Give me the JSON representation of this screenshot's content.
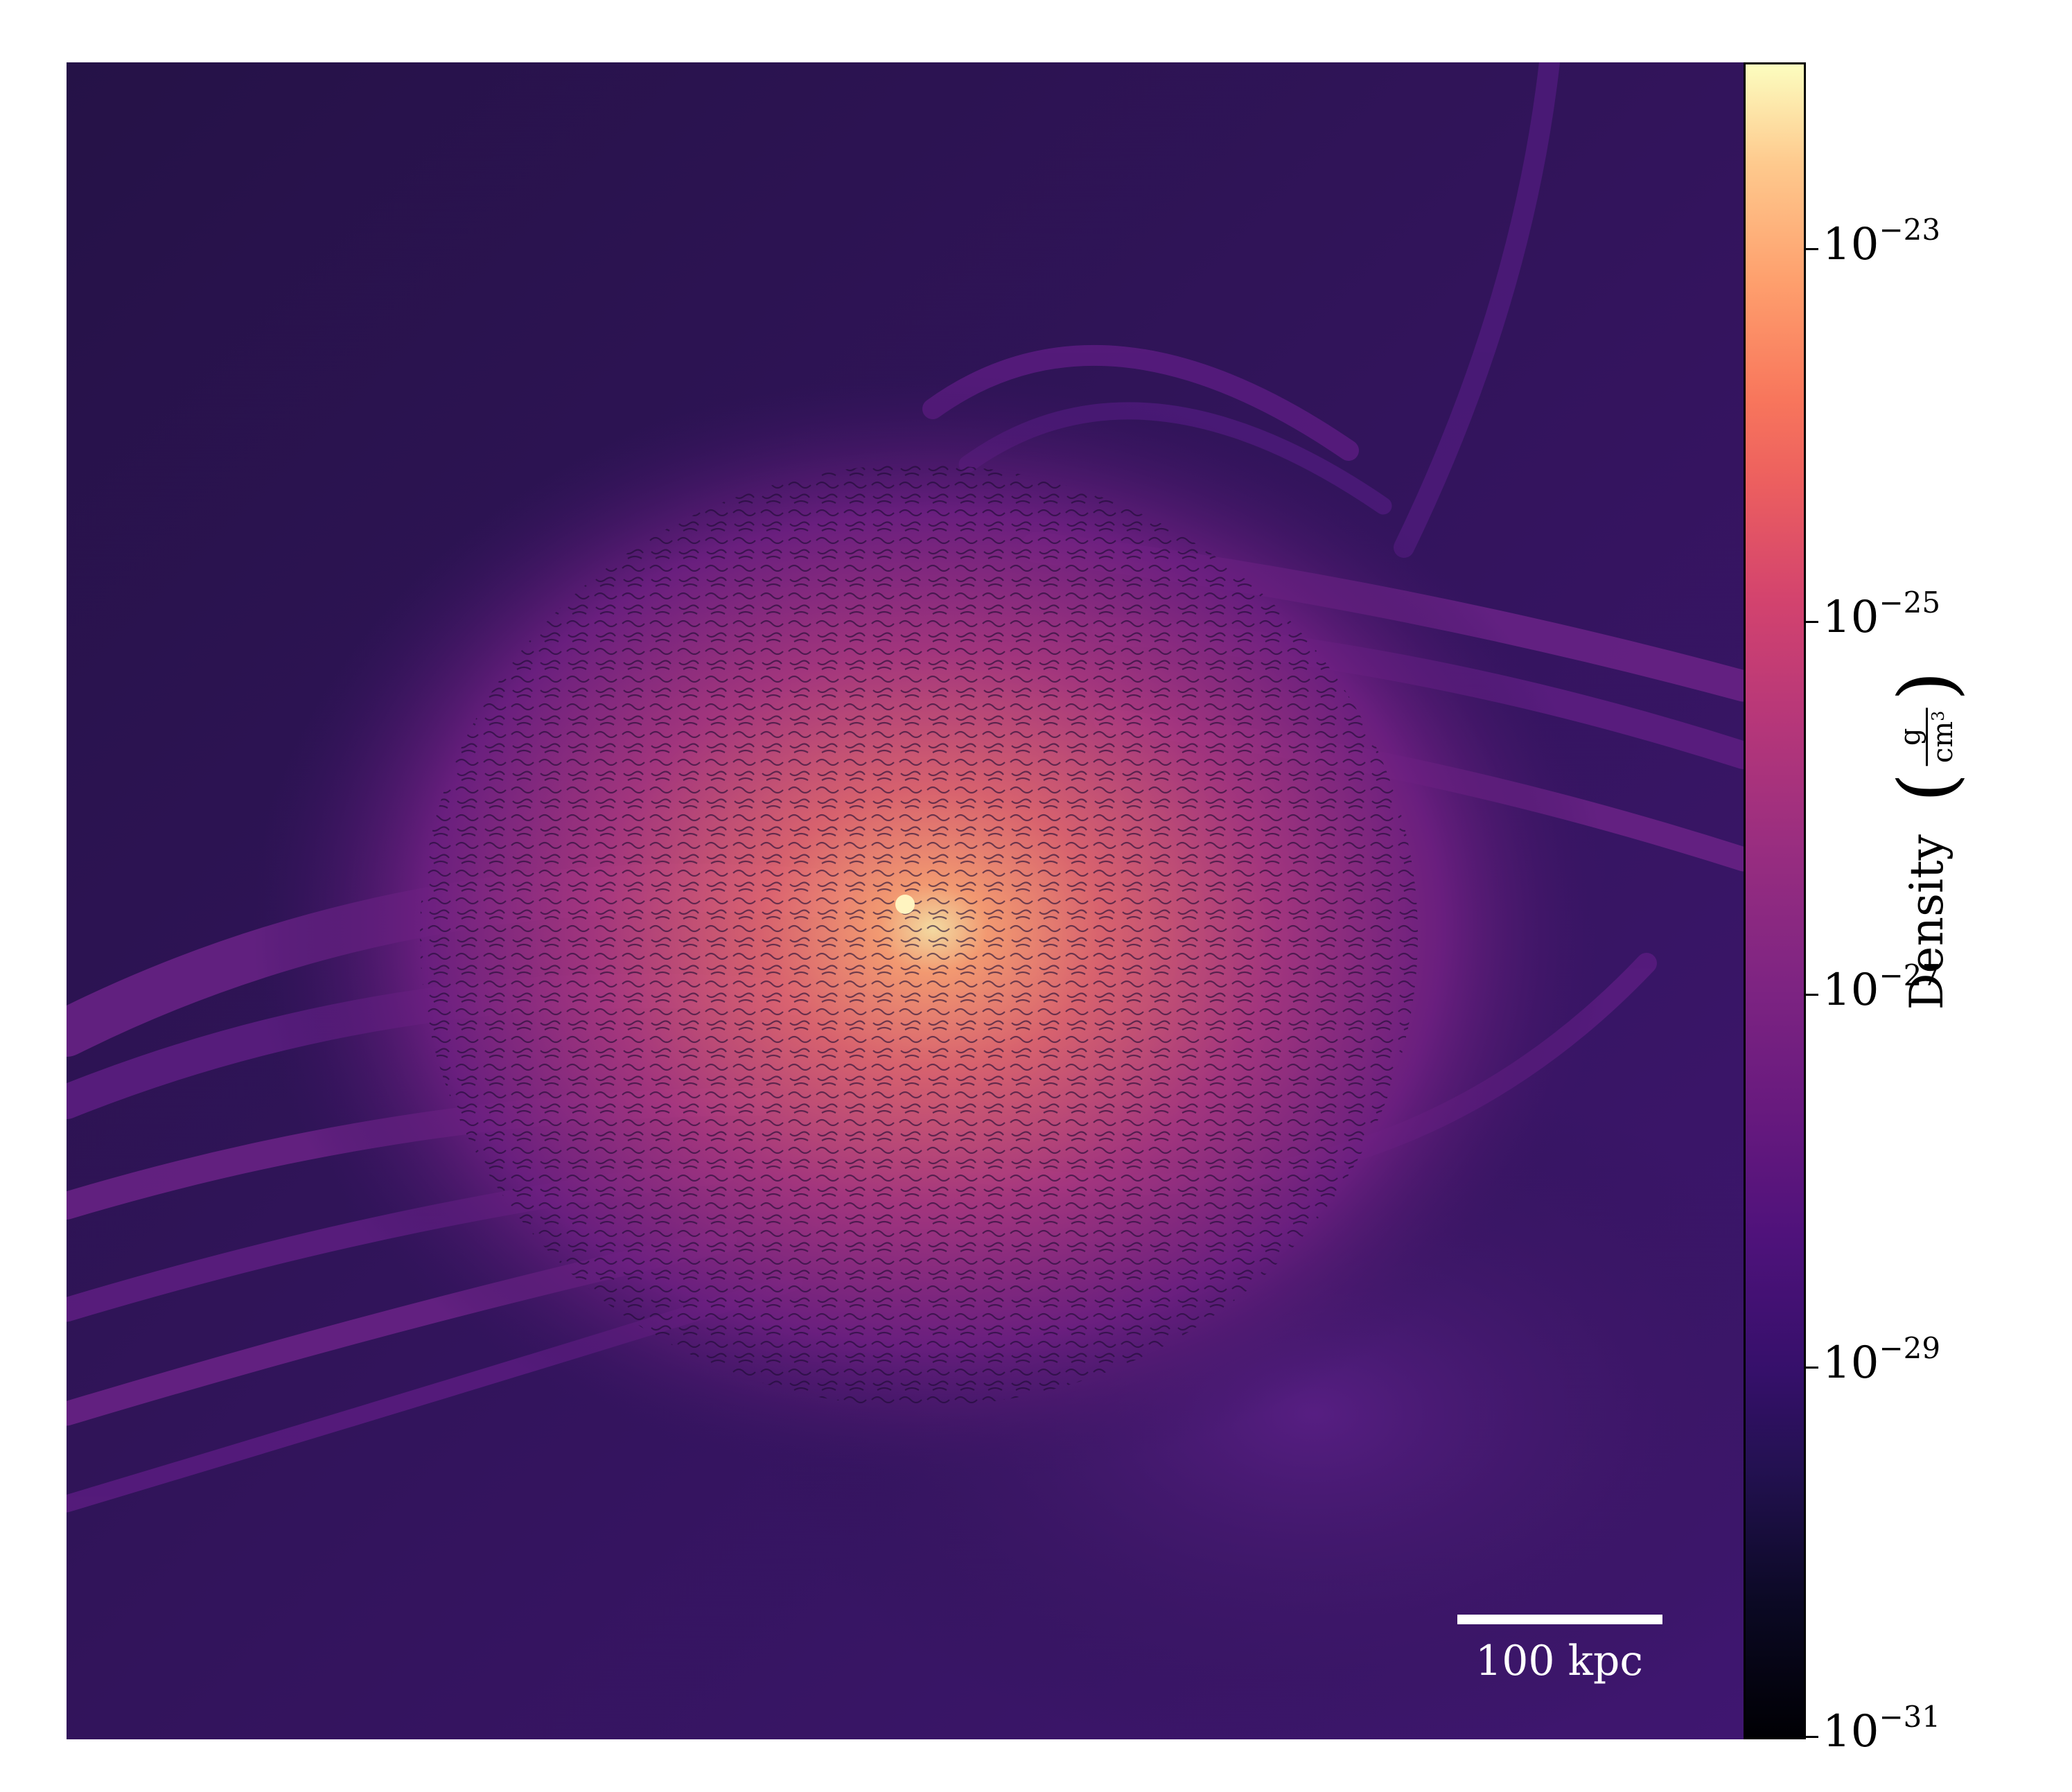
{
  "image": {
    "description_kind": "density-slice",
    "colormap": "magma",
    "background_color": "#2c1450"
  },
  "scalebar": {
    "label": "100 kpc",
    "color": "#ffffff"
  },
  "colorbar": {
    "label_text": "Density",
    "unit_numerator": "g",
    "unit_denominator": "cm",
    "unit_denominator_exponent": "3",
    "scale": "log",
    "range": [
      1e-31,
      1e-22
    ],
    "ticks": [
      {
        "base": "10",
        "exp": "−23",
        "value": 1e-23
      },
      {
        "base": "10",
        "exp": "−25",
        "value": 1e-25
      },
      {
        "base": "10",
        "exp": "−27",
        "value": 1e-27
      },
      {
        "base": "10",
        "exp": "−29",
        "value": 1e-29
      },
      {
        "base": "10",
        "exp": "−31",
        "value": 1e-31
      }
    ]
  }
}
